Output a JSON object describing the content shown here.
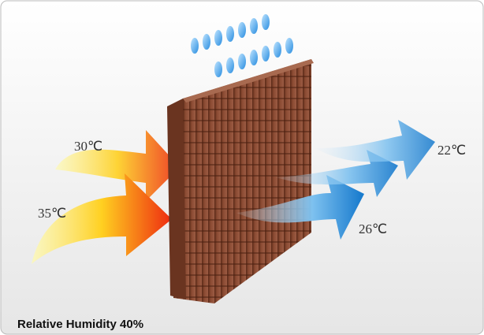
{
  "labels": {
    "warm_upper": "30℃",
    "warm_lower": "35℃",
    "cool_lower": "26℃",
    "cool_upper": "22℃"
  },
  "footer": "Relative Humidity 40%"
}
